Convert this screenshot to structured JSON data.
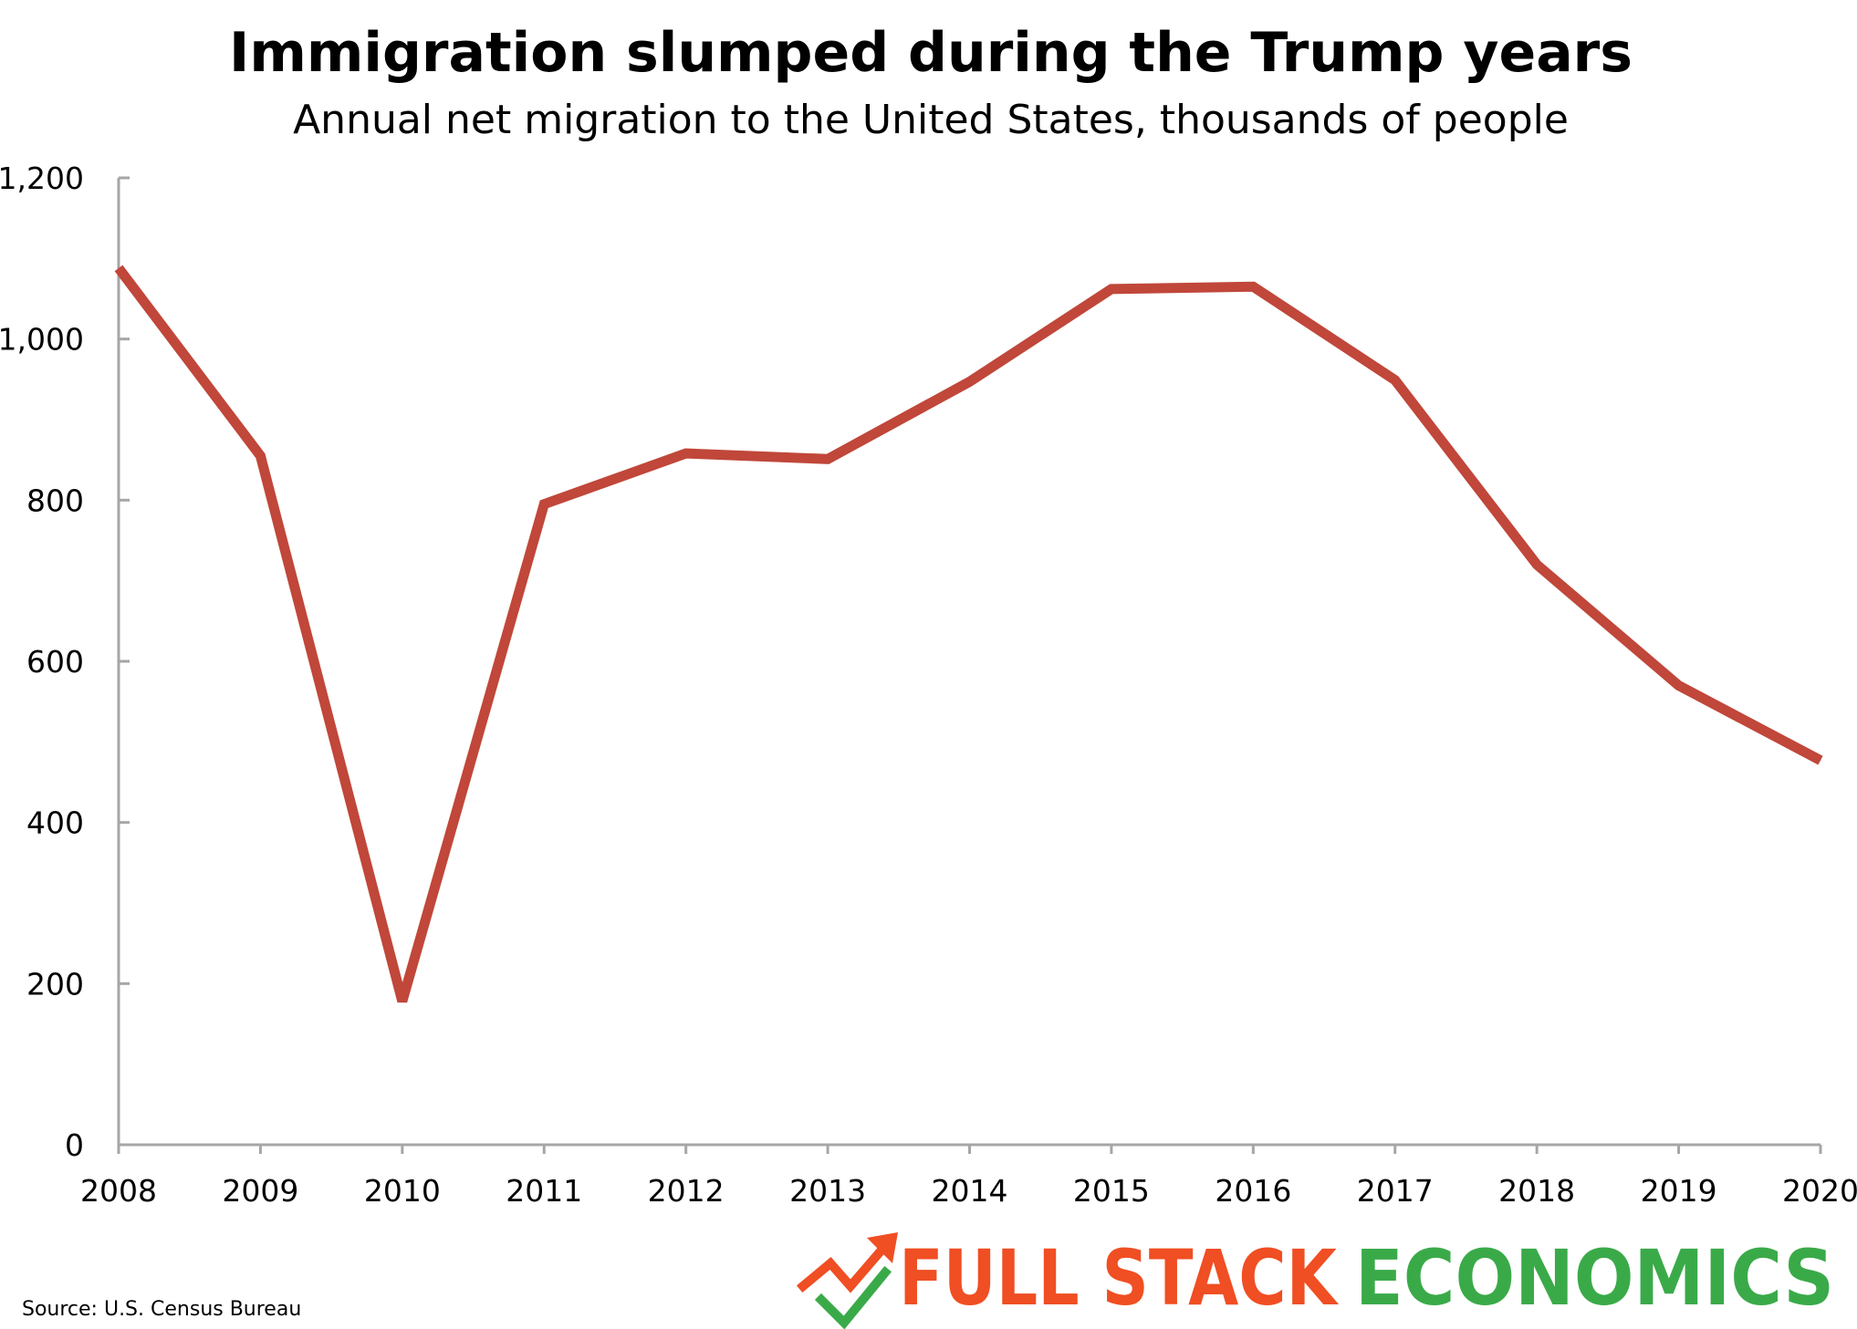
{
  "chart_data": {
    "type": "line",
    "title": "Immigration slumped during the Trump years",
    "subtitle": "Annual net migration to the United States, thousands of people",
    "xlabel": "",
    "ylabel": "",
    "x": [
      2008,
      2009,
      2010,
      2011,
      2012,
      2013,
      2014,
      2015,
      2016,
      2017,
      2018,
      2019,
      2020
    ],
    "x_tick_labels": [
      "2008",
      "2009",
      "2010",
      "2011",
      "2012",
      "2013",
      "2014",
      "2015",
      "2016",
      "2017",
      "2018",
      "2019",
      "2020"
    ],
    "series": [
      {
        "values": [
          1088,
          855,
          178,
          795,
          858,
          851,
          947,
          1062,
          1065,
          949,
          720,
          570,
          477
        ],
        "color": "#c0473a"
      }
    ],
    "ylim": [
      0,
      1200
    ],
    "y_ticks": [
      0,
      200,
      400,
      600,
      800,
      1000,
      1200
    ],
    "y_tick_labels": [
      "0",
      "200",
      "400",
      "600",
      "800",
      "1,000",
      "1,200"
    ],
    "grid": false,
    "legend": "none",
    "axis_color": "#a6a6a6"
  },
  "source": "Source: U.S. Census Bureau",
  "brand": {
    "part1": "FULL STACK",
    "part2": "ECONOMICS",
    "color1": "#f04e23",
    "color2": "#3aaa49",
    "icon": "trend-check-icon"
  }
}
